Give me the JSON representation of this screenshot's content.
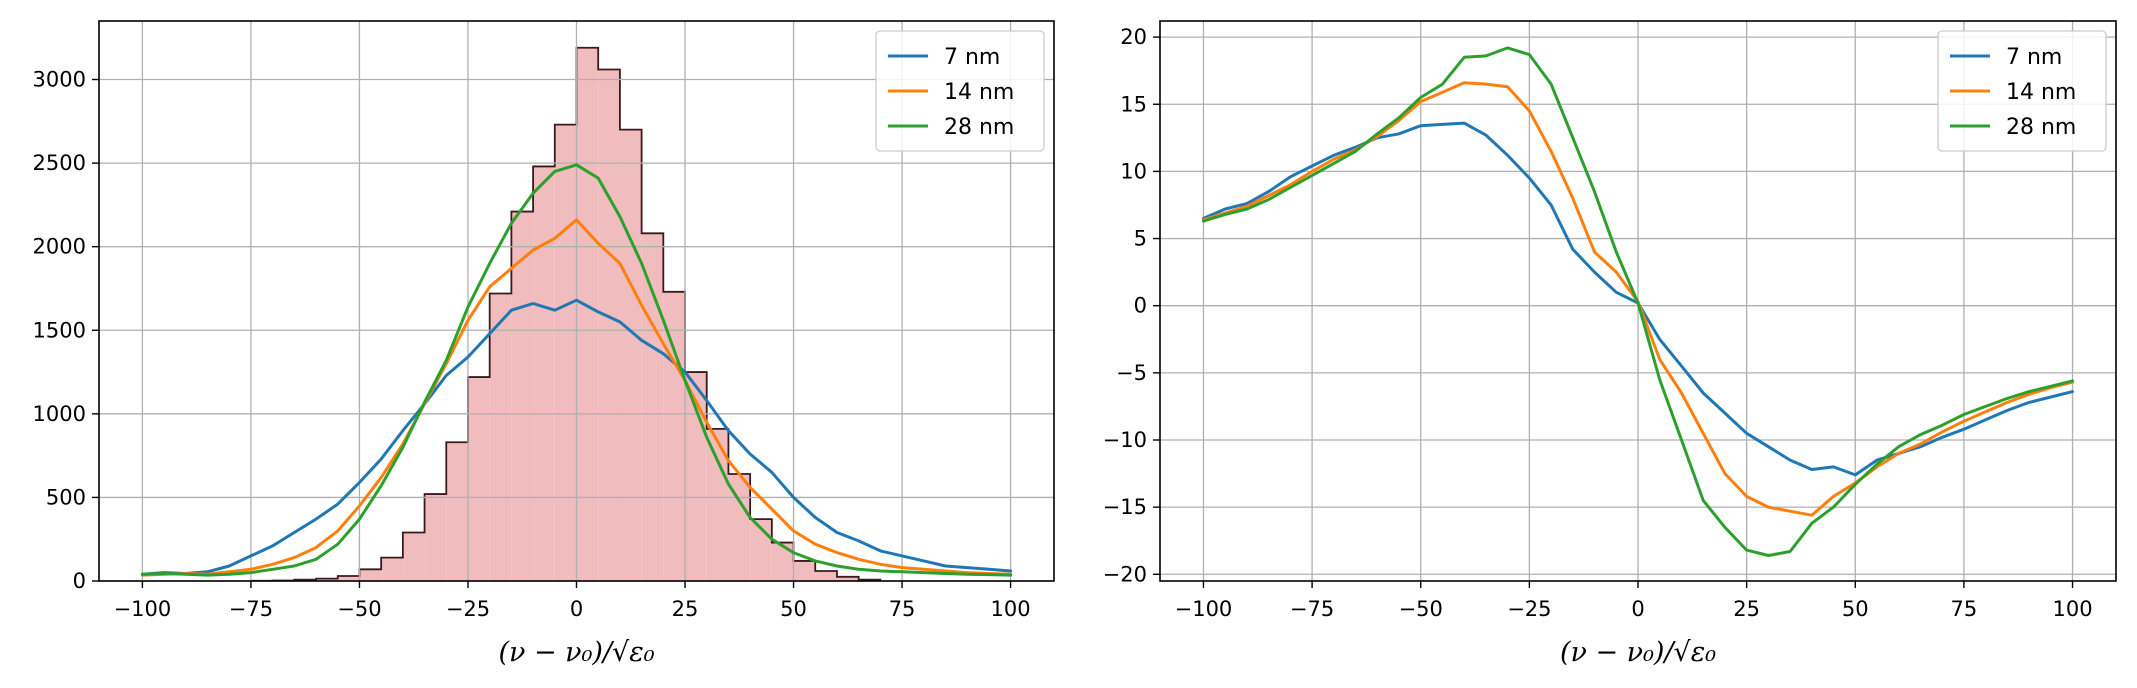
{
  "chart_data": [
    {
      "type": "line",
      "overlay": "histogram",
      "xlabel": "(ν − ν₀)/√ε₀",
      "ylabel": "",
      "xlim": [
        -110,
        110
      ],
      "ylim": [
        0,
        3350
      ],
      "grid": true,
      "legend_position": "top-right",
      "xticks": [
        -100,
        -75,
        -50,
        -25,
        0,
        25,
        50,
        75,
        100
      ],
      "xtick_labels": [
        "−100",
        "−75",
        "−50",
        "−25",
        "0",
        "25",
        "50",
        "75",
        "100"
      ],
      "yticks": [
        0,
        500,
        1000,
        1500,
        2000,
        2500,
        3000
      ],
      "ytick_labels": [
        "0",
        "500",
        "1000",
        "1500",
        "2000",
        "2500",
        "3000"
      ],
      "histogram": {
        "color": "#f0bcbe",
        "edge_color": "#3a1a1c",
        "bin_edges": [
          -75,
          -70,
          -65,
          -60,
          -55,
          -50,
          -45,
          -40,
          -35,
          -30,
          -25,
          -20,
          -15,
          -10,
          -5,
          0,
          5,
          10,
          15,
          20,
          25,
          30,
          35,
          40,
          45,
          50,
          55,
          60,
          65,
          70
        ],
        "counts": [
          1,
          3,
          8,
          14,
          30,
          70,
          140,
          290,
          520,
          830,
          1220,
          1720,
          2210,
          2480,
          2730,
          3190,
          3060,
          2700,
          2080,
          1730,
          1250,
          910,
          640,
          370,
          230,
          120,
          60,
          25,
          8
        ]
      },
      "series": [
        {
          "name": "7 nm",
          "color": "#1f77b4",
          "x": [
            -100,
            -95,
            -90,
            -85,
            -80,
            -75,
            -70,
            -65,
            -60,
            -55,
            -50,
            -45,
            -40,
            -35,
            -30,
            -25,
            -20,
            -15,
            -10,
            -5,
            0,
            5,
            10,
            15,
            20,
            25,
            30,
            35,
            40,
            45,
            50,
            55,
            60,
            65,
            70,
            75,
            80,
            85,
            90,
            95,
            100
          ],
          "y": [
            40,
            50,
            45,
            55,
            90,
            150,
            210,
            290,
            370,
            460,
            590,
            730,
            900,
            1060,
            1230,
            1340,
            1480,
            1620,
            1660,
            1620,
            1680,
            1610,
            1550,
            1440,
            1360,
            1250,
            1080,
            900,
            760,
            650,
            500,
            380,
            290,
            240,
            180,
            150,
            120,
            90,
            80,
            70,
            60
          ]
        },
        {
          "name": "14 nm",
          "color": "#ff7f0e",
          "x": [
            -100,
            -95,
            -90,
            -85,
            -80,
            -75,
            -70,
            -65,
            -60,
            -55,
            -50,
            -45,
            -40,
            -35,
            -30,
            -25,
            -20,
            -15,
            -10,
            -5,
            0,
            5,
            10,
            15,
            20,
            25,
            30,
            35,
            40,
            45,
            50,
            55,
            60,
            65,
            70,
            75,
            80,
            85,
            90,
            95,
            100
          ],
          "y": [
            35,
            40,
            45,
            40,
            55,
            70,
            100,
            140,
            200,
            300,
            450,
            620,
            820,
            1060,
            1300,
            1560,
            1760,
            1870,
            1980,
            2050,
            2160,
            2020,
            1900,
            1650,
            1420,
            1200,
            950,
            720,
            560,
            430,
            300,
            220,
            170,
            130,
            100,
            80,
            70,
            60,
            50,
            45,
            40
          ]
        },
        {
          "name": "28 nm",
          "color": "#2ca02c",
          "x": [
            -100,
            -95,
            -90,
            -85,
            -80,
            -75,
            -70,
            -65,
            -60,
            -55,
            -50,
            -45,
            -40,
            -35,
            -30,
            -25,
            -20,
            -15,
            -10,
            -5,
            0,
            5,
            10,
            15,
            20,
            25,
            30,
            35,
            40,
            45,
            50,
            55,
            60,
            65,
            70,
            75,
            80,
            85,
            90,
            95,
            100
          ],
          "y": [
            40,
            45,
            40,
            35,
            40,
            50,
            70,
            90,
            130,
            220,
            370,
            570,
            800,
            1070,
            1320,
            1640,
            1900,
            2140,
            2320,
            2450,
            2490,
            2410,
            2180,
            1900,
            1560,
            1200,
            860,
            580,
            380,
            250,
            170,
            120,
            90,
            70,
            60,
            55,
            50,
            45,
            40,
            38,
            35
          ]
        }
      ]
    },
    {
      "type": "line",
      "xlabel": "(ν − ν₀)/√ε₀",
      "ylabel": "",
      "xlim": [
        -110,
        110
      ],
      "ylim": [
        -20.5,
        21.2
      ],
      "grid": true,
      "legend_position": "top-right",
      "xticks": [
        -100,
        -75,
        -50,
        -25,
        0,
        25,
        50,
        75,
        100
      ],
      "xtick_labels": [
        "−100",
        "−75",
        "−50",
        "−25",
        "0",
        "25",
        "50",
        "75",
        "100"
      ],
      "yticks": [
        -20,
        -15,
        -10,
        -5,
        0,
        5,
        10,
        15,
        20
      ],
      "ytick_labels": [
        "−20",
        "−15",
        "−10",
        "−5",
        "0",
        "5",
        "10",
        "15",
        "20"
      ],
      "series": [
        {
          "name": "7 nm",
          "color": "#1f77b4",
          "x": [
            -100,
            -95,
            -90,
            -85,
            -80,
            -75,
            -70,
            -65,
            -60,
            -55,
            -50,
            -45,
            -40,
            -35,
            -30,
            -25,
            -20,
            -15,
            -10,
            -5,
            0,
            5,
            10,
            15,
            20,
            25,
            30,
            35,
            40,
            45,
            50,
            55,
            60,
            65,
            70,
            75,
            80,
            85,
            90,
            95,
            100
          ],
          "y": [
            6.5,
            7.2,
            7.6,
            8.5,
            9.6,
            10.4,
            11.2,
            11.8,
            12.5,
            12.8,
            13.4,
            13.5,
            13.6,
            12.7,
            11.2,
            9.5,
            7.5,
            4.2,
            2.5,
            1.0,
            0.2,
            -2.5,
            -4.5,
            -6.5,
            -8.0,
            -9.5,
            -10.5,
            -11.5,
            -12.2,
            -12.0,
            -12.6,
            -11.5,
            -11.0,
            -10.5,
            -9.8,
            -9.2,
            -8.5,
            -7.8,
            -7.2,
            -6.8,
            -6.4
          ]
        },
        {
          "name": "14 nm",
          "color": "#ff7f0e",
          "x": [
            -100,
            -95,
            -90,
            -85,
            -80,
            -75,
            -70,
            -65,
            -60,
            -55,
            -50,
            -45,
            -40,
            -35,
            -30,
            -25,
            -20,
            -15,
            -10,
            -5,
            0,
            5,
            10,
            15,
            20,
            25,
            30,
            35,
            40,
            45,
            50,
            55,
            60,
            65,
            70,
            75,
            80,
            85,
            90,
            95,
            100
          ],
          "y": [
            6.4,
            6.9,
            7.4,
            8.2,
            9.0,
            10.0,
            10.9,
            11.6,
            12.6,
            13.8,
            15.2,
            15.9,
            16.6,
            16.5,
            16.3,
            14.5,
            11.5,
            8.0,
            4.0,
            2.5,
            0.3,
            -4.0,
            -6.5,
            -9.5,
            -12.5,
            -14.2,
            -15.0,
            -15.3,
            -15.6,
            -14.2,
            -13.2,
            -12.0,
            -11.0,
            -10.3,
            -9.4,
            -8.6,
            -7.9,
            -7.2,
            -6.6,
            -6.1,
            -5.7
          ]
        },
        {
          "name": "28 nm",
          "color": "#2ca02c",
          "x": [
            -100,
            -95,
            -90,
            -85,
            -80,
            -75,
            -70,
            -65,
            -60,
            -55,
            -50,
            -45,
            -40,
            -35,
            -30,
            -25,
            -20,
            -15,
            -10,
            -5,
            0,
            5,
            10,
            15,
            20,
            25,
            30,
            35,
            40,
            45,
            50,
            55,
            60,
            65,
            70,
            75,
            80,
            85,
            90,
            95,
            100
          ],
          "y": [
            6.3,
            6.8,
            7.2,
            7.9,
            8.8,
            9.7,
            10.6,
            11.5,
            12.8,
            14.0,
            15.5,
            16.5,
            18.5,
            18.6,
            19.2,
            18.7,
            16.5,
            12.5,
            8.5,
            4.0,
            0.2,
            -5.5,
            -10.0,
            -14.5,
            -16.5,
            -18.2,
            -18.6,
            -18.3,
            -16.2,
            -15.0,
            -13.3,
            -11.8,
            -10.5,
            -9.6,
            -8.9,
            -8.1,
            -7.5,
            -6.9,
            -6.4,
            -6.0,
            -5.6
          ]
        }
      ]
    }
  ]
}
